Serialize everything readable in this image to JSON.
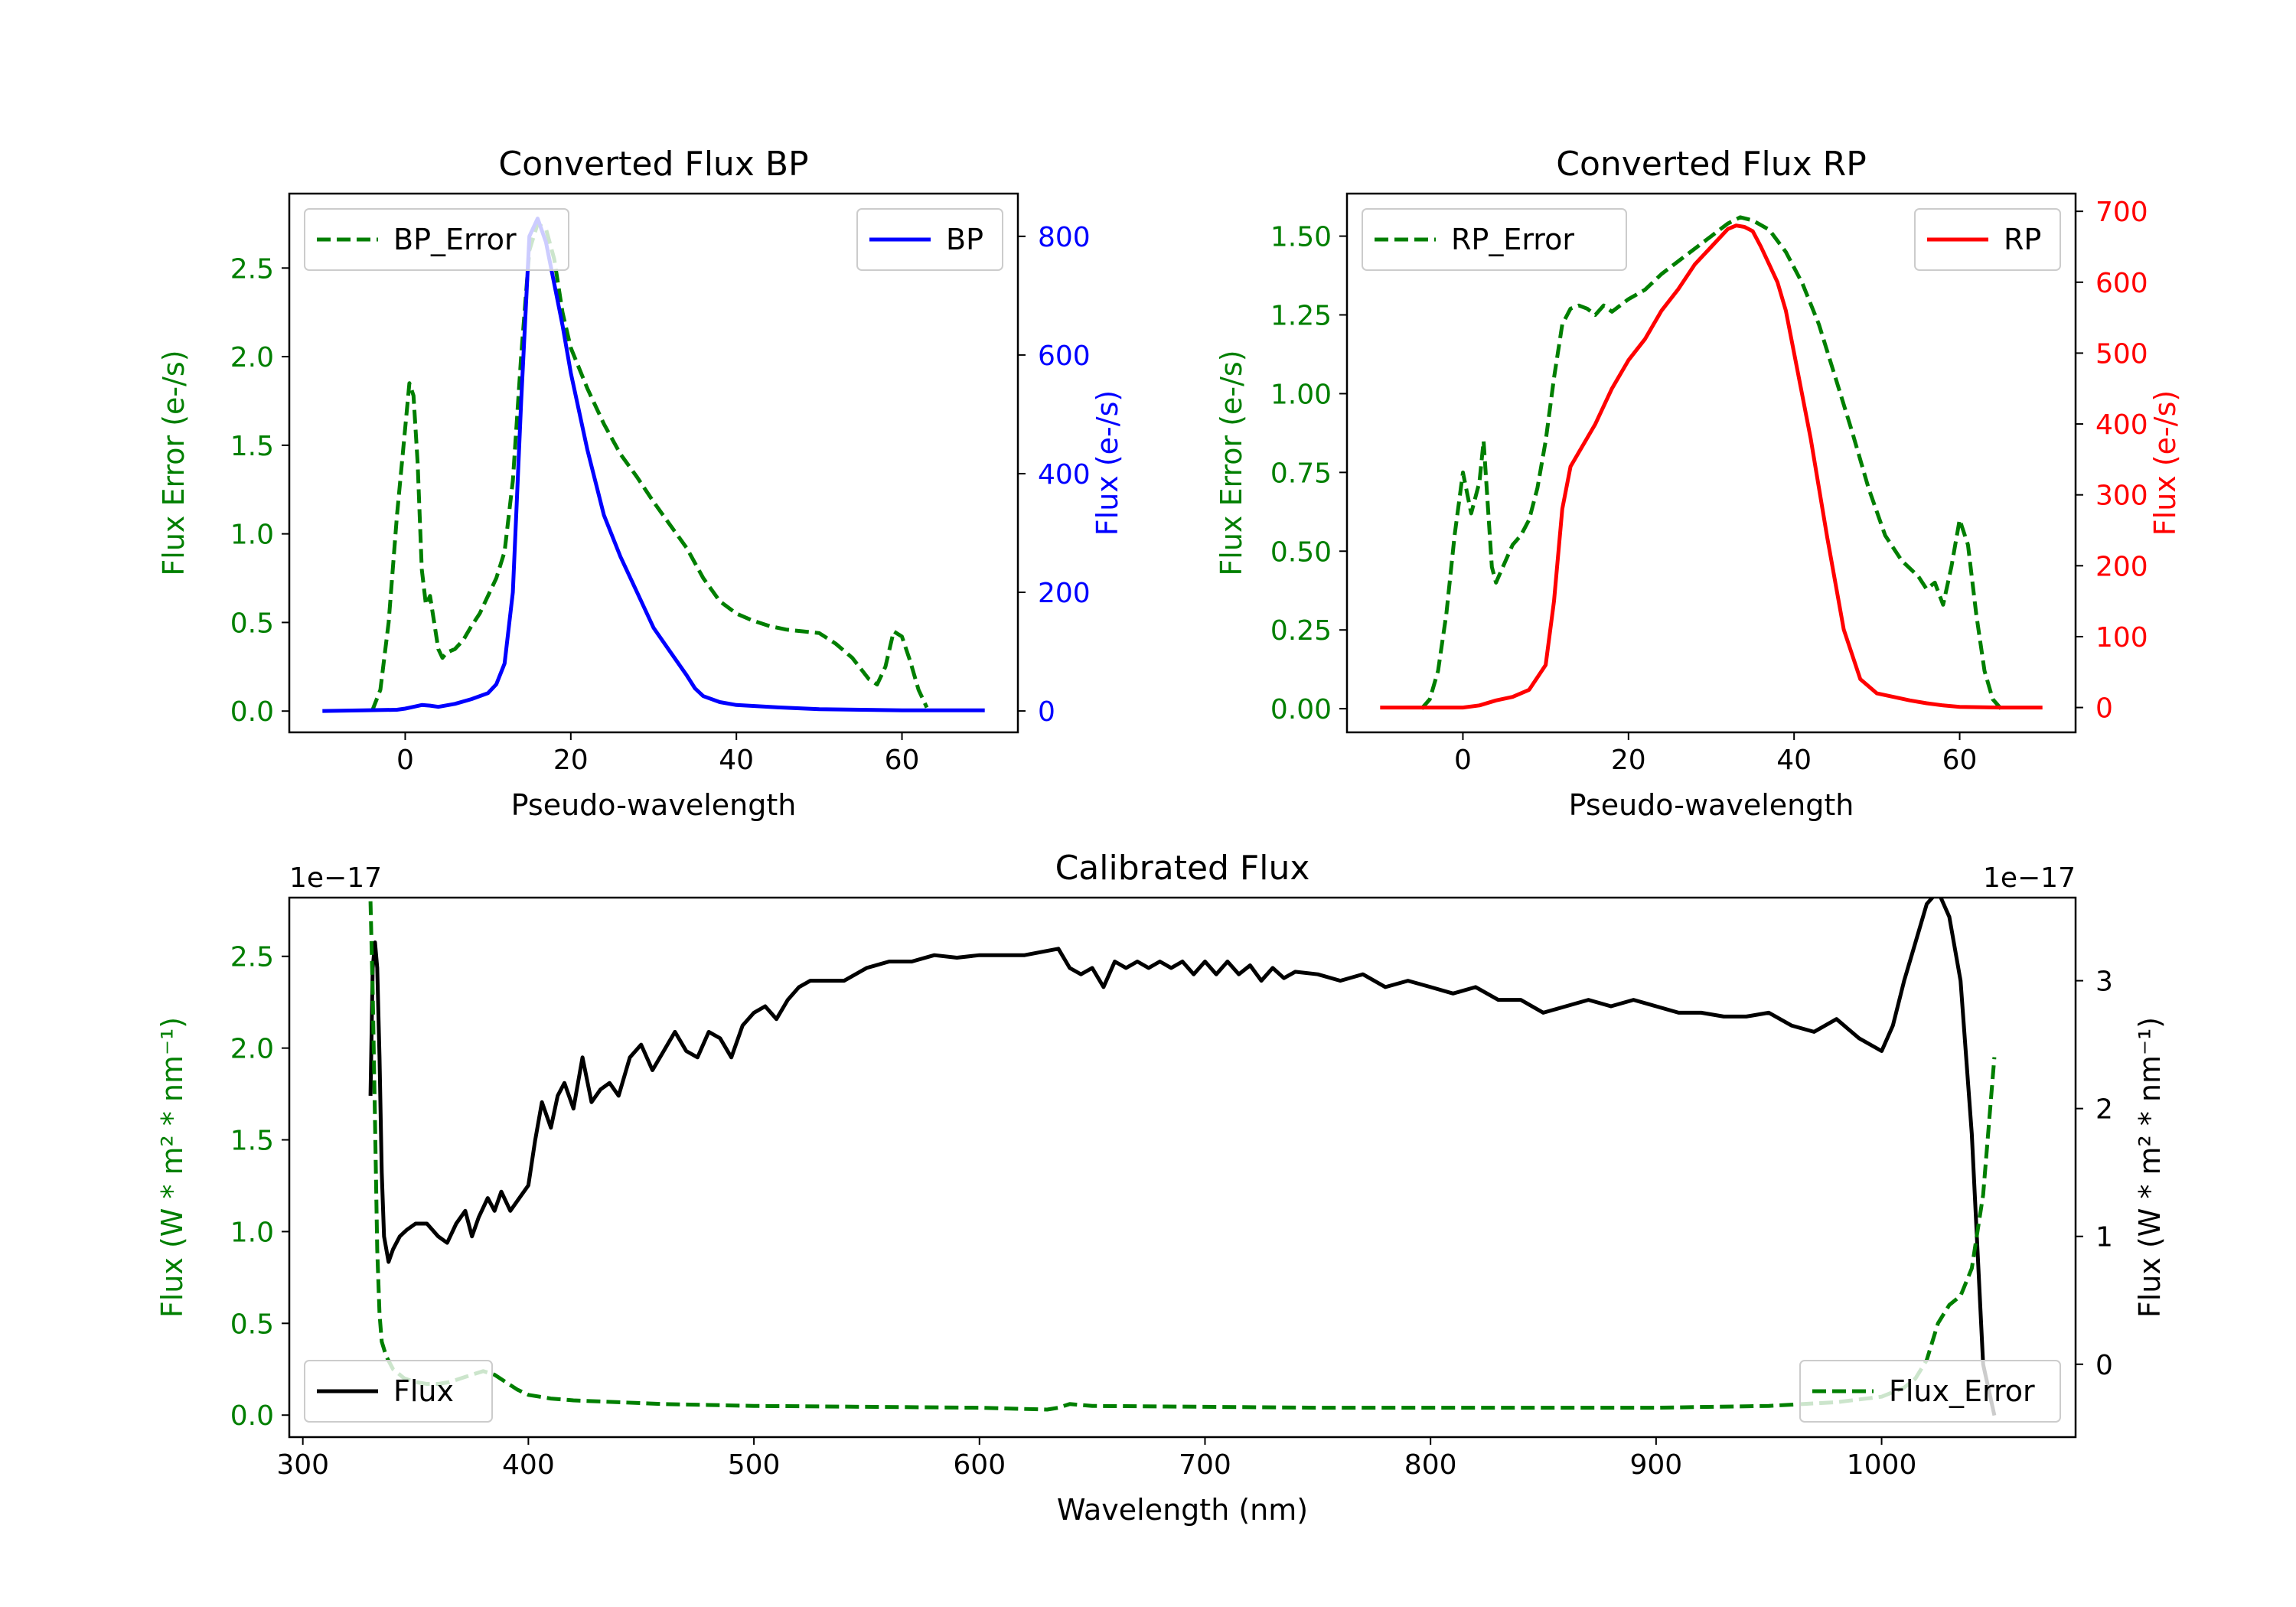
{
  "colors": {
    "bp": "#0000ff",
    "rp": "#ff0000",
    "error": "#007f00",
    "flux": "#000000"
  },
  "chart_data": [
    {
      "id": "bp",
      "type": "line",
      "title": "Converted Flux BP",
      "xlabel": "Pseudo-wavelength",
      "ylabel_left": "Flux Error (e-/s)",
      "ylabel_right": "Flux (e-/s)",
      "xlim": [
        -14,
        74
      ],
      "ylim_left": [
        -0.12,
        2.92
      ],
      "ylim_right": [
        -36,
        872
      ],
      "xticks": [
        "0",
        "20",
        "40",
        "60"
      ],
      "xtick_values": [
        0,
        20,
        40,
        60
      ],
      "yticks_left": [
        "0.0",
        "0.5",
        "1.0",
        "1.5",
        "2.0",
        "2.5"
      ],
      "ytick_values_left": [
        0,
        0.5,
        1.0,
        1.5,
        2.0,
        2.5
      ],
      "yticks_right": [
        "0",
        "200",
        "400",
        "600",
        "800"
      ],
      "ytick_values_right": [
        0,
        200,
        400,
        600,
        800
      ],
      "legend_left": "BP_Error",
      "legend_right": "BP",
      "series": [
        {
          "name": "BP_Error",
          "axis": "left",
          "style": "dashed",
          "color": "#007f00",
          "x": [
            -4,
            -3,
            -2,
            -1,
            0,
            0.5,
            1,
            1.5,
            2,
            2.5,
            3,
            3.5,
            4,
            4.5,
            5,
            6,
            7,
            8,
            9,
            10,
            11,
            12,
            13,
            14,
            15,
            16,
            17,
            18,
            19,
            20,
            22,
            24,
            26,
            28,
            30,
            32,
            34,
            36,
            38,
            40,
            42,
            44,
            46,
            48,
            50,
            52,
            54,
            56,
            57,
            58,
            59,
            60,
            61,
            62,
            63
          ],
          "y": [
            0.0,
            0.12,
            0.5,
            1.1,
            1.6,
            1.85,
            1.78,
            1.4,
            0.8,
            0.6,
            0.65,
            0.5,
            0.35,
            0.3,
            0.33,
            0.35,
            0.4,
            0.48,
            0.55,
            0.65,
            0.75,
            0.9,
            1.3,
            2.0,
            2.6,
            2.75,
            2.72,
            2.55,
            2.25,
            2.05,
            1.82,
            1.62,
            1.45,
            1.32,
            1.18,
            1.05,
            0.92,
            0.75,
            0.62,
            0.55,
            0.51,
            0.48,
            0.46,
            0.45,
            0.44,
            0.38,
            0.3,
            0.18,
            0.15,
            0.25,
            0.45,
            0.42,
            0.28,
            0.12,
            0.02
          ]
        },
        {
          "name": "BP",
          "axis": "right",
          "style": "solid",
          "color": "#0000ff",
          "x": [
            -10,
            -5,
            -1,
            0,
            1,
            2,
            3,
            4,
            6,
            8,
            10,
            11,
            12,
            13,
            14,
            15,
            16,
            17,
            18,
            19,
            20,
            22,
            24,
            26,
            28,
            30,
            32,
            34,
            35,
            36,
            38,
            40,
            45,
            50,
            55,
            60,
            65,
            70
          ],
          "y": [
            0,
            1,
            2,
            4,
            7,
            10,
            9,
            7,
            12,
            20,
            30,
            45,
            80,
            200,
            520,
            800,
            830,
            790,
            720,
            650,
            570,
            440,
            330,
            260,
            200,
            140,
            100,
            60,
            38,
            25,
            15,
            10,
            6,
            3,
            2,
            1,
            1,
            1
          ]
        }
      ]
    },
    {
      "id": "rp",
      "type": "line",
      "title": "Converted Flux RP",
      "xlabel": "Pseudo-wavelength",
      "ylabel_left": "Flux Error (e-/s)",
      "ylabel_right": "Flux (e-/s)",
      "xlim": [
        -14,
        74
      ],
      "ylim_left": [
        -0.075,
        1.635
      ],
      "ylim_right": [
        -35,
        725
      ],
      "xticks": [
        "0",
        "20",
        "40",
        "60"
      ],
      "xtick_values": [
        0,
        20,
        40,
        60
      ],
      "yticks_left": [
        "0.00",
        "0.25",
        "0.50",
        "0.75",
        "1.00",
        "1.25",
        "1.50"
      ],
      "ytick_values_left": [
        0,
        0.25,
        0.5,
        0.75,
        1.0,
        1.25,
        1.5
      ],
      "yticks_right": [
        "0",
        "100",
        "200",
        "300",
        "400",
        "500",
        "600",
        "700"
      ],
      "ytick_values_right": [
        0,
        100,
        200,
        300,
        400,
        500,
        600,
        700
      ],
      "legend_left": "RP_Error",
      "legend_right": "RP",
      "series": [
        {
          "name": "RP_Error",
          "axis": "left",
          "style": "dashed",
          "color": "#007f00",
          "x": [
            -5,
            -4,
            -3,
            -2,
            -1,
            0,
            1,
            2,
            2.5,
            3,
            3.5,
            4,
            5,
            6,
            7,
            8,
            9,
            10,
            11,
            12,
            13,
            14,
            15,
            16,
            17,
            18,
            20,
            22,
            24,
            26,
            28,
            30,
            32,
            33.5,
            35,
            37,
            39,
            41,
            43,
            45,
            47,
            49,
            51,
            53,
            55,
            56,
            57,
            58,
            59,
            60,
            61,
            62,
            63,
            64,
            65
          ],
          "y": [
            0.0,
            0.03,
            0.12,
            0.3,
            0.55,
            0.75,
            0.62,
            0.72,
            0.85,
            0.65,
            0.45,
            0.4,
            0.46,
            0.52,
            0.55,
            0.6,
            0.7,
            0.85,
            1.05,
            1.22,
            1.27,
            1.28,
            1.27,
            1.25,
            1.28,
            1.26,
            1.3,
            1.33,
            1.38,
            1.42,
            1.46,
            1.5,
            1.54,
            1.56,
            1.55,
            1.52,
            1.45,
            1.35,
            1.22,
            1.05,
            0.88,
            0.7,
            0.55,
            0.47,
            0.42,
            0.38,
            0.4,
            0.33,
            0.45,
            0.6,
            0.52,
            0.3,
            0.12,
            0.03,
            0.0
          ]
        },
        {
          "name": "RP",
          "axis": "right",
          "style": "solid",
          "color": "#ff0000",
          "x": [
            -10,
            -5,
            0,
            2,
            4,
            6,
            8,
            10,
            11,
            12,
            13,
            14,
            15,
            16,
            18,
            20,
            22,
            24,
            26,
            28,
            30,
            32,
            33,
            34,
            35,
            36,
            37,
            38,
            39,
            40,
            42,
            44,
            46,
            48,
            50,
            52,
            54,
            56,
            58,
            60,
            65,
            70
          ],
          "y": [
            0,
            0,
            0,
            3,
            10,
            15,
            25,
            60,
            150,
            280,
            340,
            360,
            380,
            400,
            450,
            490,
            520,
            560,
            590,
            625,
            650,
            675,
            680,
            678,
            672,
            650,
            625,
            600,
            560,
            500,
            380,
            240,
            110,
            40,
            20,
            15,
            10,
            6,
            3,
            1,
            0,
            0
          ]
        }
      ]
    },
    {
      "id": "calibrated",
      "type": "line",
      "title": "Calibrated Flux",
      "xlabel": "Wavelength (nm)",
      "ylabel_left": "Flux (W * m² * nm⁻¹)",
      "ylabel_right": "Flux (W * m² * nm⁻¹)",
      "offset_left": "1e−17",
      "offset_right": "1e−17",
      "xlim": [
        294,
        1086
      ],
      "ylim_left": [
        -0.12,
        2.82
      ],
      "ylim_right": [
        -0.57,
        3.65
      ],
      "xticks": [
        "300",
        "400",
        "500",
        "600",
        "700",
        "800",
        "900",
        "1000"
      ],
      "xtick_values": [
        300,
        400,
        500,
        600,
        700,
        800,
        900,
        1000
      ],
      "yticks_left": [
        "0.0",
        "0.5",
        "1.0",
        "1.5",
        "2.0",
        "2.5"
      ],
      "ytick_values_left": [
        0,
        0.5,
        1.0,
        1.5,
        2.0,
        2.5
      ],
      "yticks_right": [
        "0",
        "1",
        "2",
        "3"
      ],
      "ytick_values_right": [
        0,
        1,
        2,
        3
      ],
      "legend_left": "Flux",
      "legend_right": "Flux_Error",
      "series": [
        {
          "name": "Flux",
          "axis": "right",
          "style": "solid",
          "color": "#000000",
          "x": [
            330,
            331,
            332,
            333,
            334,
            335,
            336,
            338,
            340,
            343,
            346,
            350,
            355,
            360,
            364,
            368,
            372,
            375,
            378,
            382,
            385,
            388,
            392,
            396,
            400,
            403,
            406,
            410,
            413,
            416,
            420,
            424,
            428,
            432,
            436,
            440,
            445,
            450,
            455,
            460,
            465,
            470,
            475,
            480,
            485,
            490,
            495,
            500,
            505,
            510,
            515,
            520,
            525,
            530,
            540,
            550,
            560,
            570,
            580,
            590,
            600,
            620,
            635,
            640,
            645,
            650,
            655,
            660,
            665,
            670,
            675,
            680,
            685,
            690,
            695,
            700,
            705,
            710,
            715,
            720,
            725,
            730,
            735,
            740,
            750,
            760,
            770,
            780,
            790,
            800,
            810,
            820,
            830,
            840,
            850,
            860,
            870,
            880,
            890,
            900,
            910,
            920,
            930,
            940,
            950,
            960,
            970,
            980,
            990,
            1000,
            1005,
            1010,
            1015,
            1020,
            1025,
            1030,
            1035,
            1040,
            1045,
            1050
          ],
          "y": [
            2.1,
            3.1,
            3.3,
            3.1,
            2.4,
            1.5,
            1.0,
            0.8,
            0.9,
            1.0,
            1.05,
            1.1,
            1.1,
            1.0,
            0.95,
            1.1,
            1.2,
            1.0,
            1.15,
            1.3,
            1.2,
            1.35,
            1.2,
            1.3,
            1.4,
            1.75,
            2.05,
            1.85,
            2.1,
            2.2,
            2.0,
            2.4,
            2.05,
            2.15,
            2.2,
            2.1,
            2.4,
            2.5,
            2.3,
            2.45,
            2.6,
            2.45,
            2.4,
            2.6,
            2.55,
            2.4,
            2.65,
            2.75,
            2.8,
            2.7,
            2.85,
            2.95,
            3.0,
            3.0,
            3.0,
            3.1,
            3.15,
            3.15,
            3.2,
            3.18,
            3.2,
            3.2,
            3.25,
            3.1,
            3.05,
            3.1,
            2.95,
            3.15,
            3.1,
            3.15,
            3.1,
            3.15,
            3.1,
            3.15,
            3.05,
            3.15,
            3.05,
            3.15,
            3.05,
            3.12,
            3.0,
            3.1,
            3.02,
            3.07,
            3.05,
            3.0,
            3.05,
            2.95,
            3.0,
            2.95,
            2.9,
            2.95,
            2.85,
            2.85,
            2.75,
            2.8,
            2.85,
            2.8,
            2.85,
            2.8,
            2.75,
            2.75,
            2.72,
            2.72,
            2.75,
            2.65,
            2.6,
            2.7,
            2.55,
            2.45,
            2.65,
            3.0,
            3.3,
            3.6,
            3.7,
            3.5,
            3.0,
            1.8,
            0.0,
            -0.4
          ]
        },
        {
          "name": "Flux_Error",
          "axis": "left",
          "style": "dashed",
          "color": "#007f00",
          "x": [
            330,
            331,
            332,
            333,
            334,
            335,
            337,
            340,
            345,
            350,
            355,
            360,
            365,
            370,
            375,
            380,
            385,
            390,
            395,
            400,
            410,
            420,
            440,
            460,
            480,
            500,
            550,
            600,
            630,
            635,
            640,
            650,
            700,
            750,
            800,
            850,
            900,
            950,
            980,
            1000,
            1010,
            1015,
            1020,
            1025,
            1030,
            1035,
            1040,
            1045,
            1050
          ],
          "y": [
            2.8,
            2.3,
            1.6,
            0.9,
            0.55,
            0.4,
            0.32,
            0.25,
            0.2,
            0.18,
            0.17,
            0.17,
            0.18,
            0.2,
            0.22,
            0.24,
            0.22,
            0.18,
            0.14,
            0.11,
            0.09,
            0.08,
            0.07,
            0.06,
            0.055,
            0.05,
            0.045,
            0.04,
            0.03,
            0.04,
            0.06,
            0.05,
            0.045,
            0.04,
            0.04,
            0.04,
            0.04,
            0.05,
            0.07,
            0.1,
            0.15,
            0.2,
            0.3,
            0.5,
            0.6,
            0.65,
            0.8,
            1.2,
            1.95
          ]
        }
      ]
    }
  ]
}
